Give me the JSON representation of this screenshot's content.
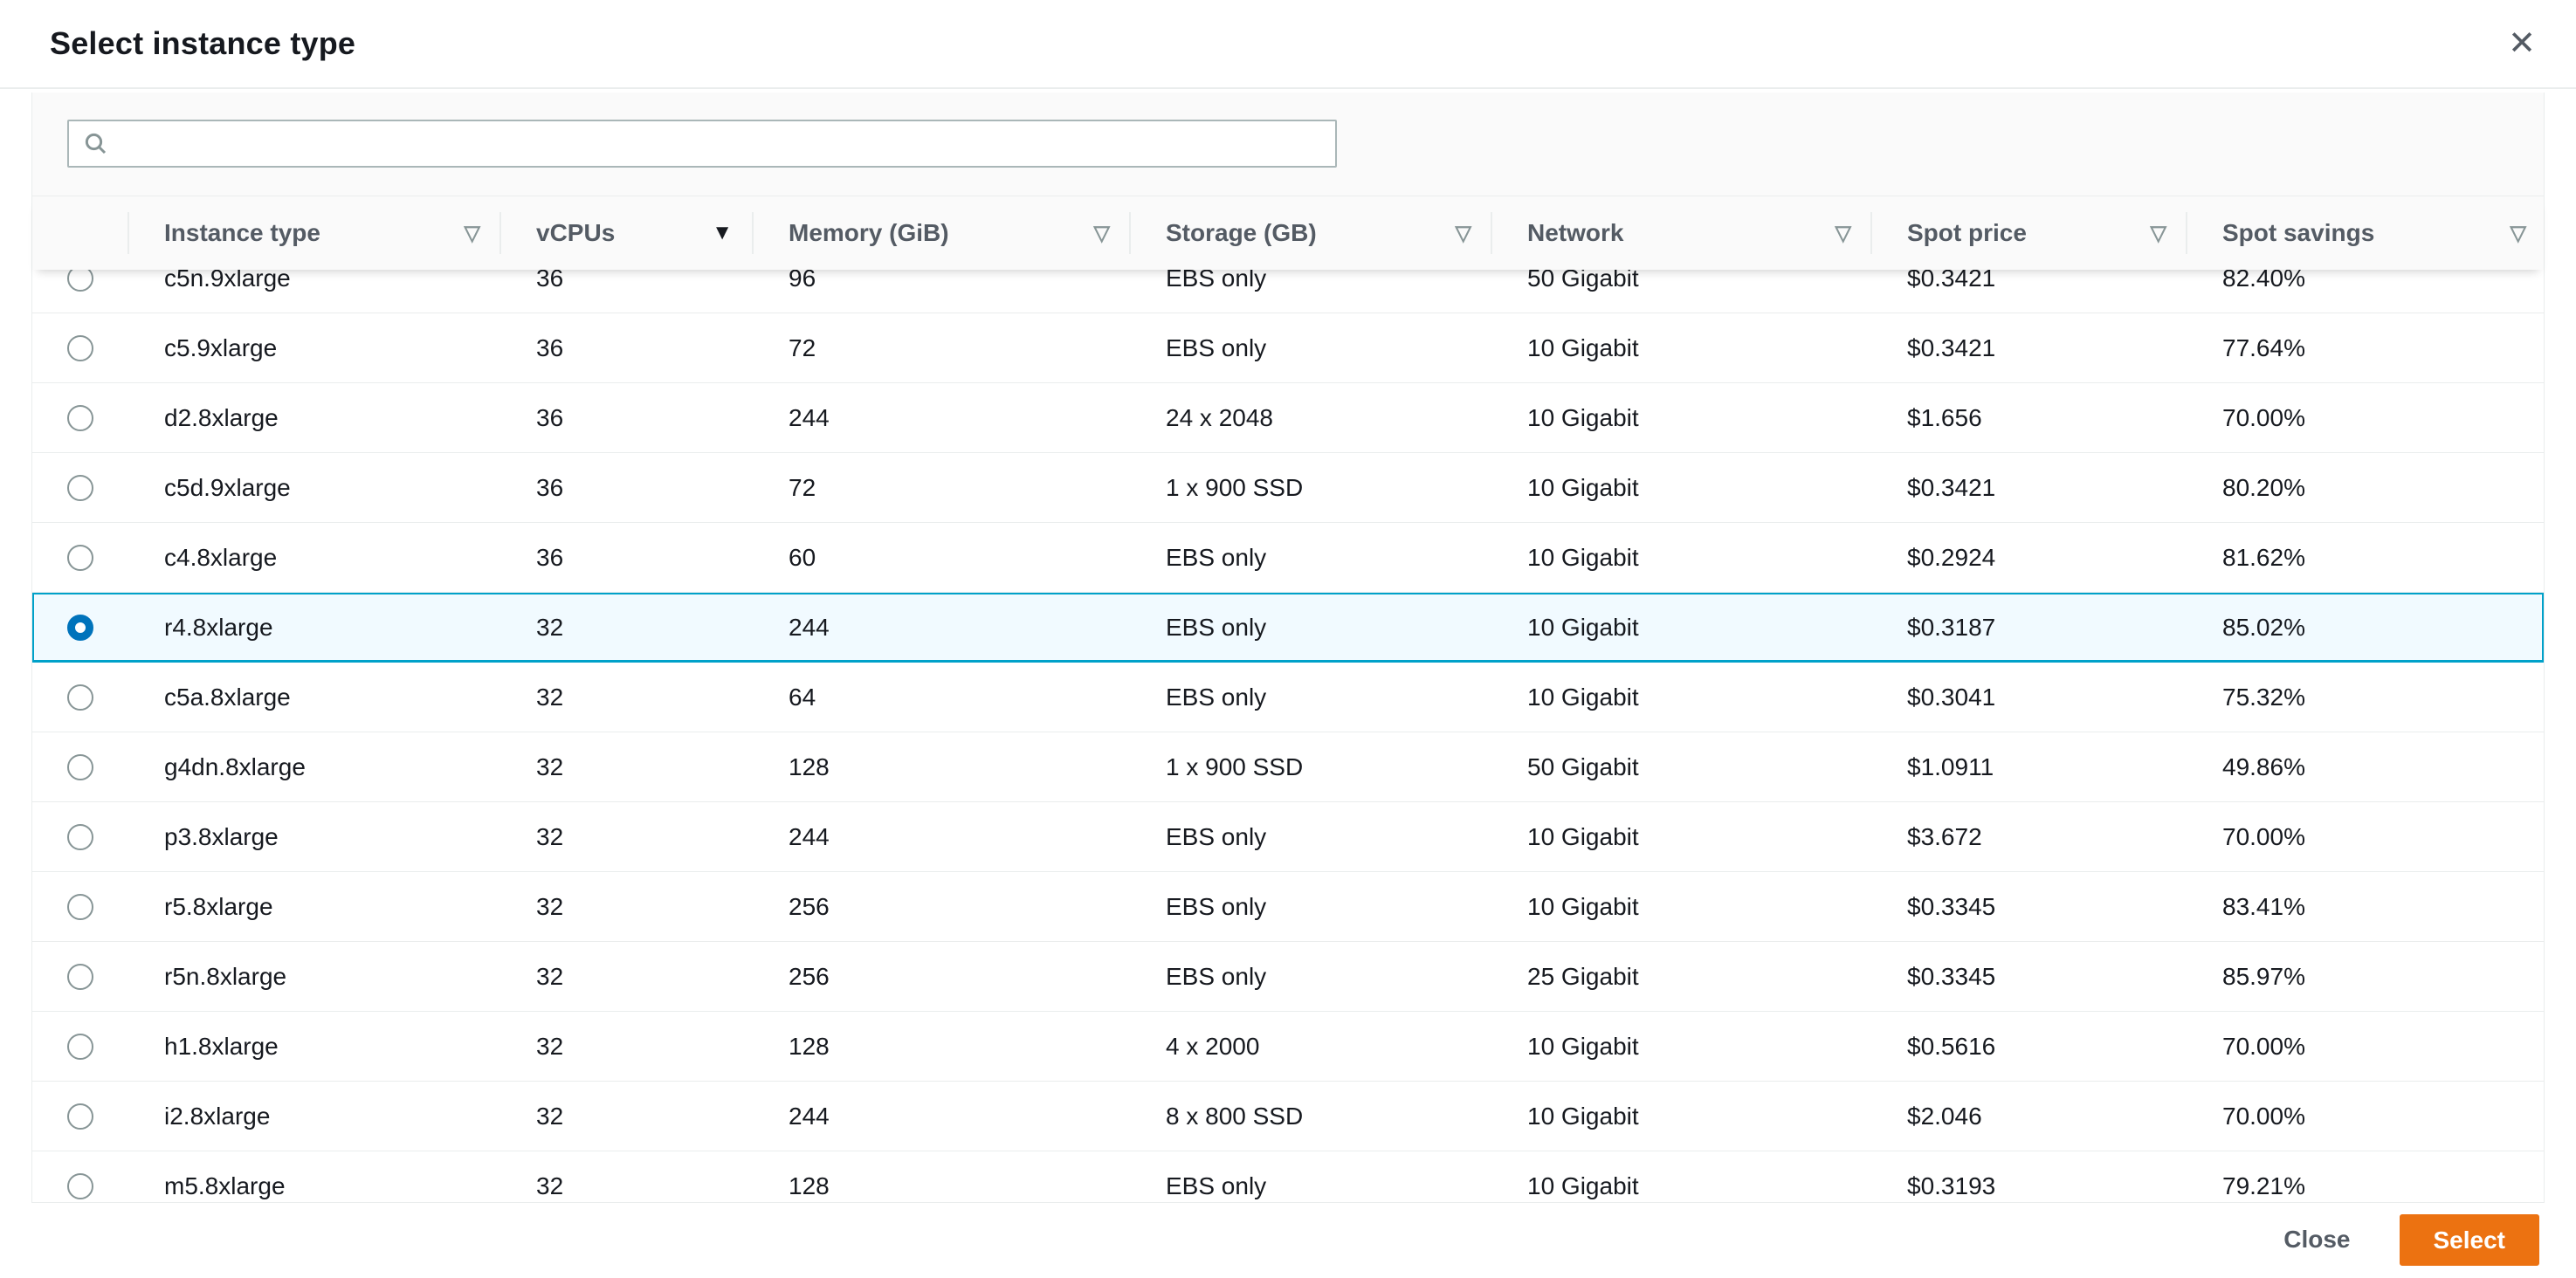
{
  "modal": {
    "title": "Select instance type"
  },
  "search": {
    "value": "",
    "placeholder": ""
  },
  "icons": {
    "close": "✕",
    "sort_unsorted": "▽",
    "sort_desc": "▼"
  },
  "colors": {
    "accent_orange": "#ec7211",
    "radio_selected_blue": "#0073bb",
    "selected_row_border": "#00a1c9",
    "selected_row_bg": "#f1faff",
    "border_gray": "#eaeded",
    "header_text": "#545b64"
  },
  "table": {
    "columns": [
      {
        "label": "",
        "sort": "none"
      },
      {
        "label": "Instance type",
        "sort": "unsorted"
      },
      {
        "label": "vCPUs",
        "sort": "desc"
      },
      {
        "label": "Memory (GiB)",
        "sort": "unsorted"
      },
      {
        "label": "Storage (GB)",
        "sort": "unsorted"
      },
      {
        "label": "Network",
        "sort": "unsorted"
      },
      {
        "label": "Spot price",
        "sort": "unsorted"
      },
      {
        "label": "Spot savings",
        "sort": "unsorted"
      }
    ],
    "rows": [
      {
        "instance_type": "c5n.9xlarge",
        "vcpus": "36",
        "memory": "96",
        "storage": "EBS only",
        "network": "50 Gigabit",
        "spot_price": "$0.3421",
        "spot_savings": "82.40%",
        "selected": false,
        "partially_visible": true
      },
      {
        "instance_type": "c5.9xlarge",
        "vcpus": "36",
        "memory": "72",
        "storage": "EBS only",
        "network": "10 Gigabit",
        "spot_price": "$0.3421",
        "spot_savings": "77.64%",
        "selected": false
      },
      {
        "instance_type": "d2.8xlarge",
        "vcpus": "36",
        "memory": "244",
        "storage": "24 x 2048",
        "network": "10 Gigabit",
        "spot_price": "$1.656",
        "spot_savings": "70.00%",
        "selected": false
      },
      {
        "instance_type": "c5d.9xlarge",
        "vcpus": "36",
        "memory": "72",
        "storage": "1 x 900 SSD",
        "network": "10 Gigabit",
        "spot_price": "$0.3421",
        "spot_savings": "80.20%",
        "selected": false
      },
      {
        "instance_type": "c4.8xlarge",
        "vcpus": "36",
        "memory": "60",
        "storage": "EBS only",
        "network": "10 Gigabit",
        "spot_price": "$0.2924",
        "spot_savings": "81.62%",
        "selected": false
      },
      {
        "instance_type": "r4.8xlarge",
        "vcpus": "32",
        "memory": "244",
        "storage": "EBS only",
        "network": "10 Gigabit",
        "spot_price": "$0.3187",
        "spot_savings": "85.02%",
        "selected": true
      },
      {
        "instance_type": "c5a.8xlarge",
        "vcpus": "32",
        "memory": "64",
        "storage": "EBS only",
        "network": "10 Gigabit",
        "spot_price": "$0.3041",
        "spot_savings": "75.32%",
        "selected": false
      },
      {
        "instance_type": "g4dn.8xlarge",
        "vcpus": "32",
        "memory": "128",
        "storage": "1 x 900 SSD",
        "network": "50 Gigabit",
        "spot_price": "$1.0911",
        "spot_savings": "49.86%",
        "selected": false
      },
      {
        "instance_type": "p3.8xlarge",
        "vcpus": "32",
        "memory": "244",
        "storage": "EBS only",
        "network": "10 Gigabit",
        "spot_price": "$3.672",
        "spot_savings": "70.00%",
        "selected": false
      },
      {
        "instance_type": "r5.8xlarge",
        "vcpus": "32",
        "memory": "256",
        "storage": "EBS only",
        "network": "10 Gigabit",
        "spot_price": "$0.3345",
        "spot_savings": "83.41%",
        "selected": false
      },
      {
        "instance_type": "r5n.8xlarge",
        "vcpus": "32",
        "memory": "256",
        "storage": "EBS only",
        "network": "25 Gigabit",
        "spot_price": "$0.3345",
        "spot_savings": "85.97%",
        "selected": false
      },
      {
        "instance_type": "h1.8xlarge",
        "vcpus": "32",
        "memory": "128",
        "storage": "4 x 2000",
        "network": "10 Gigabit",
        "spot_price": "$0.5616",
        "spot_savings": "70.00%",
        "selected": false
      },
      {
        "instance_type": "i2.8xlarge",
        "vcpus": "32",
        "memory": "244",
        "storage": "8 x 800 SSD",
        "network": "10 Gigabit",
        "spot_price": "$2.046",
        "spot_savings": "70.00%",
        "selected": false
      },
      {
        "instance_type": "m5.8xlarge",
        "vcpus": "32",
        "memory": "128",
        "storage": "EBS only",
        "network": "10 Gigabit",
        "spot_price": "$0.3193",
        "spot_savings": "79.21%",
        "selected": false
      }
    ]
  },
  "footer": {
    "close_label": "Close",
    "select_label": "Select"
  }
}
